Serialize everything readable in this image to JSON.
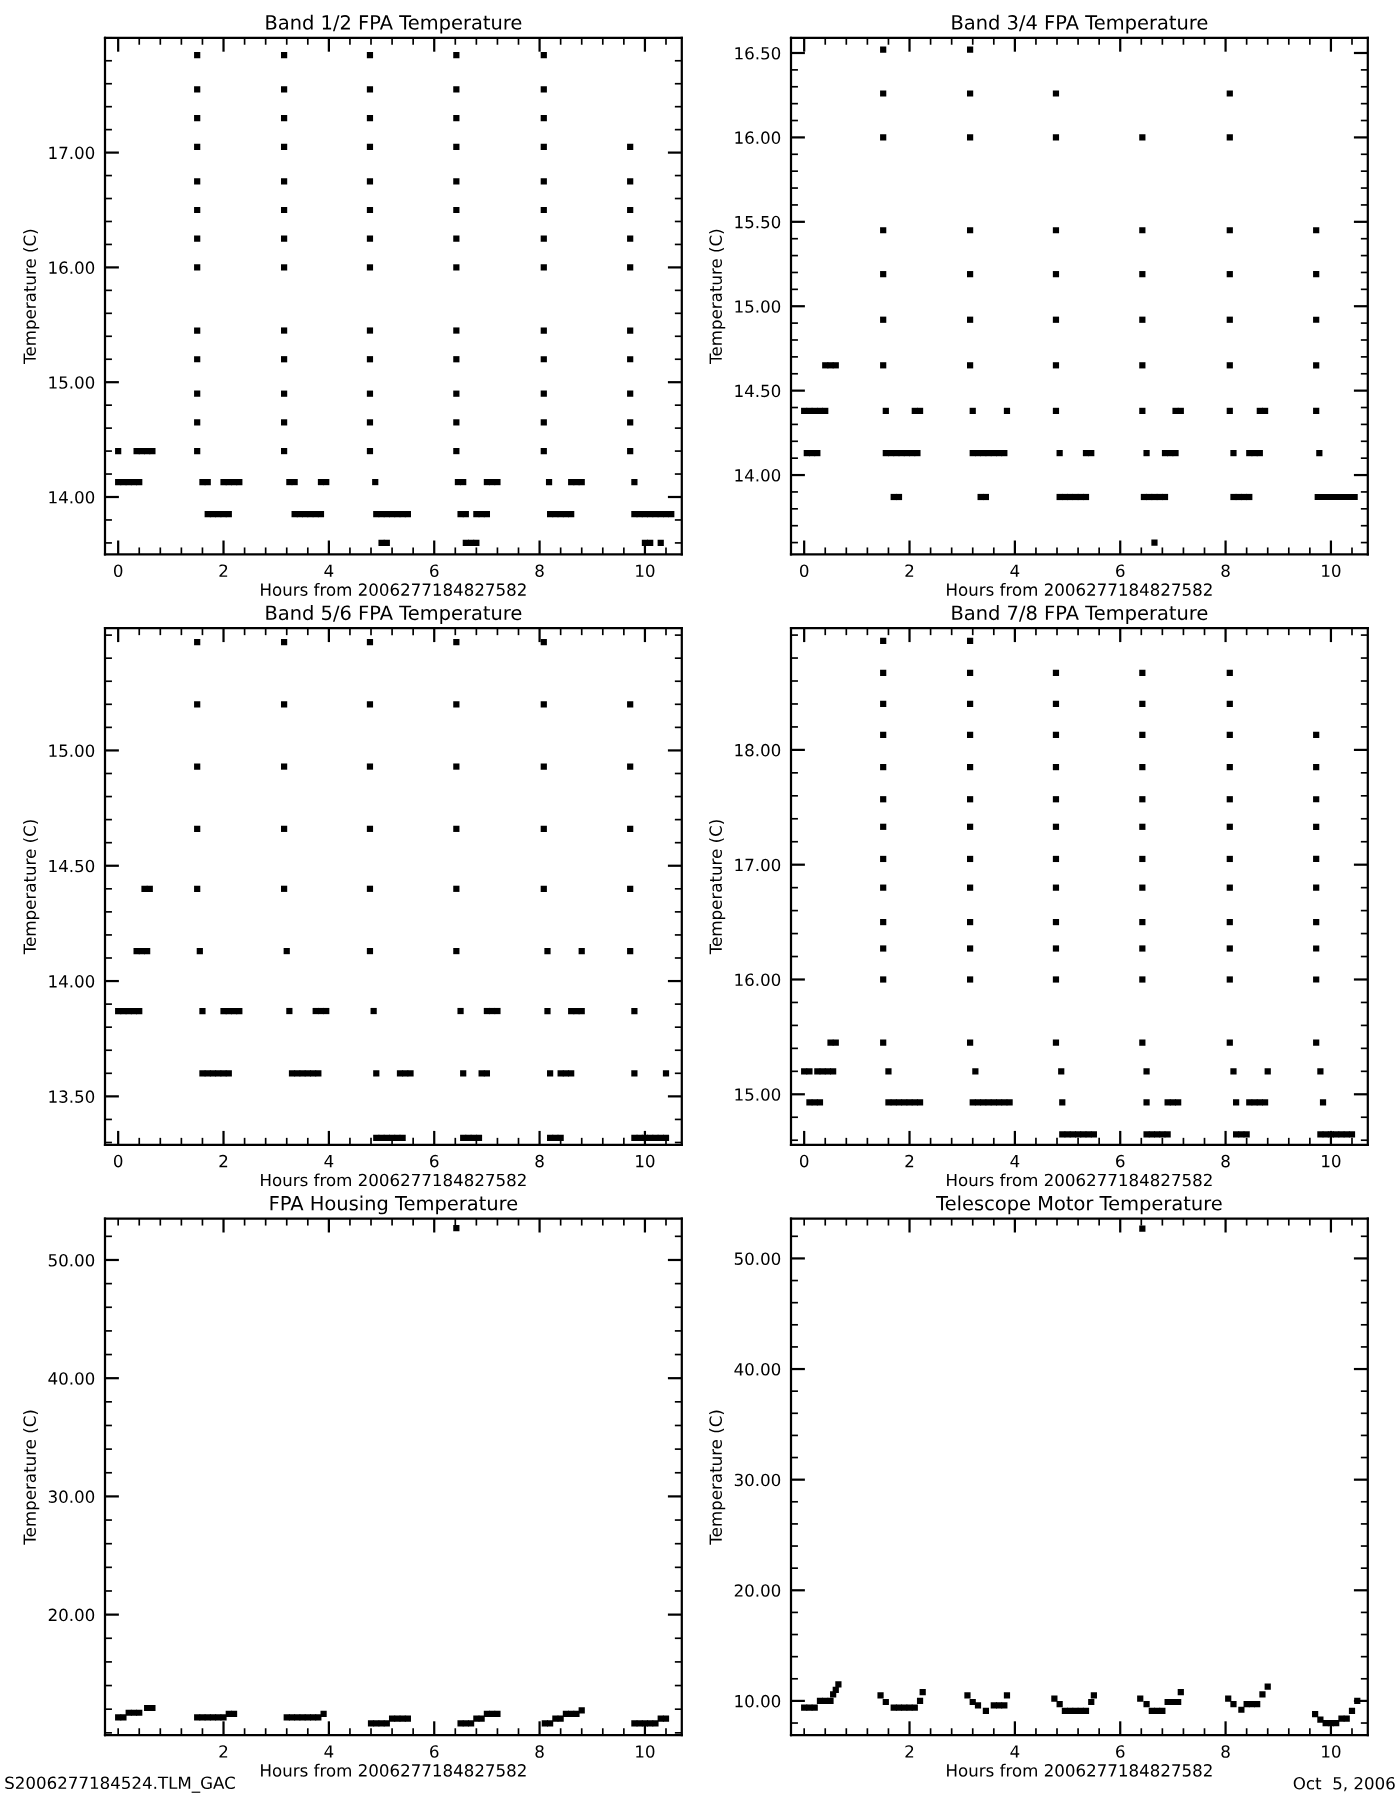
{
  "chart_data": [
    {
      "type": "scatter",
      "title": "Band 1/2 FPA Temperature",
      "xlabel": "Hours from 2006277184827582",
      "ylabel": "Temperature (C)",
      "color": "#000000",
      "marker": "square",
      "grid": false,
      "x": [
        0,
        0,
        0.1,
        0.2,
        0.3,
        0.4,
        0.35,
        0.45,
        0.55,
        0.65,
        1.5,
        1.5,
        1.5,
        1.5,
        1.5,
        1.5,
        1.5,
        1.5,
        1.5,
        1.5,
        1.5,
        1.5,
        1.5,
        1.6,
        1.7,
        1.7,
        1.8,
        1.9,
        2.0,
        2.1,
        2.0,
        2.1,
        2.2,
        2.3,
        3.15,
        3.15,
        3.15,
        3.15,
        3.15,
        3.15,
        3.15,
        3.15,
        3.15,
        3.15,
        3.15,
        3.15,
        3.15,
        3.25,
        3.35,
        3.35,
        3.45,
        3.55,
        3.65,
        3.75,
        3.85,
        3.85,
        3.95,
        4.78,
        4.78,
        4.78,
        4.78,
        4.78,
        4.78,
        4.78,
        4.78,
        4.78,
        4.78,
        4.78,
        4.78,
        4.78,
        4.88,
        4.9,
        5.0,
        5.1,
        5.2,
        5.3,
        5.4,
        5.5,
        5.0,
        5.1,
        6.42,
        6.42,
        6.42,
        6.42,
        6.42,
        6.42,
        6.42,
        6.42,
        6.42,
        6.42,
        6.42,
        6.42,
        6.42,
        6.45,
        6.55,
        6.5,
        6.6,
        6.6,
        6.7,
        6.8,
        6.8,
        6.9,
        7.0,
        7.0,
        7.1,
        7.2,
        8.08,
        8.08,
        8.08,
        8.08,
        8.08,
        8.08,
        8.08,
        8.08,
        8.08,
        8.08,
        8.08,
        8.08,
        8.08,
        8.18,
        8.2,
        8.3,
        8.4,
        8.5,
        8.6,
        8.6,
        8.7,
        8.8,
        9.72,
        9.72,
        9.72,
        9.72,
        9.72,
        9.72,
        9.72,
        9.72,
        9.72,
        9.72,
        9.8,
        9.8,
        9.9,
        10.0,
        10.1,
        10.2,
        10.3,
        10.4,
        10.5,
        10.0,
        10.1,
        10.3
      ],
      "values": [
        14.4,
        14.13,
        14.13,
        14.13,
        14.13,
        14.13,
        14.4,
        14.4,
        14.4,
        14.4,
        17.85,
        17.55,
        17.3,
        17.05,
        16.75,
        16.5,
        16.25,
        16.0,
        15.45,
        15.2,
        14.9,
        14.65,
        14.4,
        14.13,
        14.13,
        13.85,
        13.85,
        13.85,
        13.85,
        13.85,
        14.13,
        14.13,
        14.13,
        14.13,
        17.85,
        17.55,
        17.3,
        17.05,
        16.75,
        16.5,
        16.25,
        16.0,
        15.45,
        15.2,
        14.9,
        14.65,
        14.4,
        14.13,
        14.13,
        13.85,
        13.85,
        13.85,
        13.85,
        13.85,
        13.85,
        14.13,
        14.13,
        17.85,
        17.55,
        17.3,
        17.05,
        16.75,
        16.5,
        16.25,
        16.0,
        15.45,
        15.2,
        14.9,
        14.65,
        14.4,
        14.13,
        13.85,
        13.85,
        13.85,
        13.85,
        13.85,
        13.85,
        13.85,
        13.6,
        13.6,
        17.85,
        17.55,
        17.3,
        17.05,
        16.75,
        16.5,
        16.25,
        16.0,
        15.45,
        15.2,
        14.9,
        14.65,
        14.4,
        14.13,
        14.13,
        13.85,
        13.85,
        13.6,
        13.6,
        13.6,
        13.85,
        13.85,
        13.85,
        14.13,
        14.13,
        14.13,
        17.85,
        17.55,
        17.3,
        17.05,
        16.75,
        16.5,
        16.25,
        16.0,
        15.45,
        15.2,
        14.9,
        14.65,
        14.4,
        14.13,
        13.85,
        13.85,
        13.85,
        13.85,
        13.85,
        14.13,
        14.13,
        14.13,
        17.05,
        16.75,
        16.5,
        16.25,
        16.0,
        15.45,
        15.2,
        14.9,
        14.65,
        14.4,
        14.13,
        13.85,
        13.85,
        13.85,
        13.85,
        13.85,
        13.85,
        13.85,
        13.85,
        13.6,
        13.6,
        13.6
      ],
      "xlim": [
        -0.25,
        10.7
      ],
      "ylim": [
        13.5,
        18.0
      ],
      "xticks": [
        0,
        2,
        4,
        6,
        8,
        10
      ],
      "yticks": [
        {
          "value": 14,
          "label": "14.00"
        },
        {
          "value": 15,
          "label": "15.00"
        },
        {
          "value": 16,
          "label": "16.00"
        },
        {
          "value": 17,
          "label": "17.00"
        }
      ]
    },
    {
      "type": "scatter",
      "title": "Band 3/4 FPA Temperature",
      "xlabel": "Hours from 2006277184827582",
      "ylabel": "Temperature (C)",
      "color": "#000000",
      "marker": "square",
      "grid": false,
      "x": [
        0,
        0.1,
        0.2,
        0.3,
        0.4,
        0.05,
        0.15,
        0.25,
        0.4,
        0.5,
        0.6,
        1.5,
        1.5,
        1.5,
        1.5,
        1.5,
        1.5,
        1.5,
        1.55,
        1.55,
        1.65,
        1.75,
        1.85,
        1.95,
        2.05,
        2.15,
        1.7,
        1.8,
        2.1,
        2.2,
        3.15,
        3.15,
        3.15,
        3.15,
        3.15,
        3.15,
        3.15,
        3.2,
        3.2,
        3.3,
        3.4,
        3.5,
        3.6,
        3.7,
        3.8,
        3.35,
        3.45,
        3.85,
        4.78,
        4.78,
        4.78,
        4.78,
        4.78,
        4.78,
        4.78,
        4.85,
        4.85,
        4.95,
        5.05,
        5.15,
        5.25,
        5.35,
        5.35,
        5.45,
        6.42,
        6.42,
        6.42,
        6.42,
        6.42,
        6.42,
        6.5,
        6.45,
        6.55,
        6.65,
        6.75,
        6.85,
        6.85,
        6.95,
        7.05,
        7.05,
        7.15,
        6.65,
        8.08,
        8.08,
        8.08,
        8.08,
        8.08,
        8.08,
        8.08,
        8.15,
        8.15,
        8.25,
        8.35,
        8.45,
        8.45,
        8.55,
        8.65,
        8.65,
        8.75,
        9.72,
        9.72,
        9.72,
        9.72,
        9.72,
        9.78,
        9.75,
        9.85,
        9.95,
        10.05,
        10.15,
        10.25,
        10.35,
        10.45
      ],
      "values": [
        14.38,
        14.38,
        14.38,
        14.38,
        14.38,
        14.13,
        14.13,
        14.13,
        14.65,
        14.65,
        14.65,
        16.52,
        16.26,
        16.0,
        15.45,
        15.19,
        14.92,
        14.65,
        14.38,
        14.13,
        14.13,
        14.13,
        14.13,
        14.13,
        14.13,
        14.13,
        13.87,
        13.87,
        14.38,
        14.38,
        16.52,
        16.26,
        16.0,
        15.45,
        15.19,
        14.92,
        14.65,
        14.38,
        14.13,
        14.13,
        14.13,
        14.13,
        14.13,
        14.13,
        14.13,
        13.87,
        13.87,
        14.38,
        16.26,
        16.0,
        15.45,
        15.19,
        14.92,
        14.65,
        14.38,
        14.13,
        13.87,
        13.87,
        13.87,
        13.87,
        13.87,
        13.87,
        14.13,
        14.13,
        16.0,
        15.45,
        15.19,
        14.92,
        14.65,
        14.38,
        14.13,
        13.87,
        13.87,
        13.87,
        13.87,
        13.87,
        14.13,
        14.13,
        14.13,
        14.38,
        14.38,
        13.6,
        16.26,
        16.0,
        15.45,
        15.19,
        14.92,
        14.65,
        14.38,
        14.13,
        13.87,
        13.87,
        13.87,
        13.87,
        14.13,
        14.13,
        14.13,
        14.38,
        14.38,
        15.45,
        15.19,
        14.92,
        14.65,
        14.38,
        14.13,
        13.87,
        13.87,
        13.87,
        13.87,
        13.87,
        13.87,
        13.87,
        13.87
      ],
      "xlim": [
        -0.25,
        10.7
      ],
      "ylim": [
        13.53,
        16.59
      ],
      "xticks": [
        0,
        2,
        4,
        6,
        8,
        10
      ],
      "yticks": [
        {
          "value": 14,
          "label": "14.00"
        },
        {
          "value": 14.5,
          "label": "14.50"
        },
        {
          "value": 15,
          "label": "15.00"
        },
        {
          "value": 15.5,
          "label": "15.50"
        },
        {
          "value": 16,
          "label": "16.00"
        },
        {
          "value": 16.5,
          "label": "16.50"
        }
      ]
    },
    {
      "type": "scatter",
      "title": "Band 5/6 FPA Temperature",
      "xlabel": "Hours from 2006277184827582",
      "ylabel": "Temperature (C)",
      "color": "#000000",
      "marker": "square",
      "grid": false,
      "x": [
        0,
        0.1,
        0.2,
        0.3,
        0.4,
        0.35,
        0.45,
        0.55,
        0.5,
        0.6,
        1.5,
        1.5,
        1.5,
        1.5,
        1.5,
        1.55,
        1.6,
        1.6,
        1.7,
        1.8,
        1.9,
        2.0,
        2.1,
        2.0,
        2.1,
        2.2,
        2.3,
        3.15,
        3.15,
        3.15,
        3.15,
        3.15,
        3.2,
        3.25,
        3.3,
        3.4,
        3.5,
        3.6,
        3.7,
        3.8,
        3.75,
        3.85,
        3.95,
        4.78,
        4.78,
        4.78,
        4.78,
        4.78,
        4.78,
        4.85,
        4.9,
        4.9,
        5.0,
        5.1,
        5.2,
        5.3,
        5.4,
        5.35,
        5.45,
        5.55,
        6.42,
        6.42,
        6.42,
        6.42,
        6.42,
        6.42,
        6.5,
        6.55,
        6.55,
        6.65,
        6.75,
        6.85,
        6.9,
        7.0,
        7.0,
        7.1,
        7.2,
        8.08,
        8.08,
        8.08,
        8.08,
        8.08,
        8.15,
        8.15,
        8.2,
        8.2,
        8.3,
        8.4,
        8.4,
        8.5,
        8.6,
        8.6,
        8.7,
        8.8,
        8.8,
        9.72,
        9.72,
        9.72,
        9.72,
        9.72,
        9.8,
        9.8,
        9.8,
        9.9,
        10.0,
        10.1,
        10.2,
        10.3,
        10.4,
        10.4
      ],
      "values": [
        13.87,
        13.87,
        13.87,
        13.87,
        13.87,
        14.13,
        14.13,
        14.13,
        14.4,
        14.4,
        15.47,
        15.2,
        14.93,
        14.66,
        14.4,
        14.13,
        13.87,
        13.6,
        13.6,
        13.6,
        13.6,
        13.6,
        13.6,
        13.87,
        13.87,
        13.87,
        13.87,
        15.47,
        15.2,
        14.93,
        14.66,
        14.4,
        14.13,
        13.87,
        13.6,
        13.6,
        13.6,
        13.6,
        13.6,
        13.6,
        13.87,
        13.87,
        13.87,
        15.47,
        15.2,
        14.93,
        14.66,
        14.4,
        14.13,
        13.87,
        13.6,
        13.32,
        13.32,
        13.32,
        13.32,
        13.32,
        13.32,
        13.6,
        13.6,
        13.6,
        15.47,
        15.2,
        14.93,
        14.66,
        14.4,
        14.13,
        13.87,
        13.6,
        13.32,
        13.32,
        13.32,
        13.32,
        13.6,
        13.6,
        13.87,
        13.87,
        13.87,
        15.47,
        15.2,
        14.93,
        14.66,
        14.4,
        14.13,
        13.87,
        13.6,
        13.32,
        13.32,
        13.32,
        13.6,
        13.6,
        13.6,
        13.87,
        13.87,
        13.87,
        14.13,
        15.2,
        14.93,
        14.66,
        14.4,
        14.13,
        13.87,
        13.6,
        13.32,
        13.32,
        13.32,
        13.32,
        13.32,
        13.32,
        13.32,
        13.6
      ],
      "xlim": [
        -0.25,
        10.7
      ],
      "ylim": [
        13.29,
        15.53
      ],
      "xticks": [
        0,
        2,
        4,
        6,
        8,
        10
      ],
      "yticks": [
        {
          "value": 13.5,
          "label": "13.50"
        },
        {
          "value": 14,
          "label": "14.00"
        },
        {
          "value": 14.5,
          "label": "14.50"
        },
        {
          "value": 15,
          "label": "15.00"
        }
      ]
    },
    {
      "type": "scatter",
      "title": "Band 7/8 FPA Temperature",
      "xlabel": "Hours from 2006277184827582",
      "ylabel": "Temperature (C)",
      "color": "#000000",
      "marker": "square",
      "grid": false,
      "x": [
        0,
        0.1,
        0.1,
        0.2,
        0.3,
        0.25,
        0.35,
        0.45,
        0.55,
        0.5,
        0.6,
        1.5,
        1.5,
        1.5,
        1.5,
        1.5,
        1.5,
        1.5,
        1.5,
        1.5,
        1.5,
        1.5,
        1.5,
        1.5,
        1.6,
        1.6,
        1.7,
        1.8,
        1.9,
        2.0,
        2.1,
        2.2,
        3.15,
        3.15,
        3.15,
        3.15,
        3.15,
        3.15,
        3.15,
        3.15,
        3.15,
        3.15,
        3.15,
        3.15,
        3.15,
        3.25,
        3.2,
        3.3,
        3.4,
        3.5,
        3.6,
        3.7,
        3.8,
        3.9,
        4.78,
        4.78,
        4.78,
        4.78,
        4.78,
        4.78,
        4.78,
        4.78,
        4.78,
        4.78,
        4.78,
        4.78,
        4.88,
        4.9,
        4.9,
        5.0,
        5.1,
        5.2,
        5.3,
        5.4,
        5.5,
        6.42,
        6.42,
        6.42,
        6.42,
        6.42,
        6.42,
        6.42,
        6.42,
        6.42,
        6.42,
        6.42,
        6.42,
        6.5,
        6.5,
        6.5,
        6.6,
        6.7,
        6.8,
        6.9,
        6.9,
        7.0,
        7.1,
        8.08,
        8.08,
        8.08,
        8.08,
        8.08,
        8.08,
        8.08,
        8.08,
        8.08,
        8.08,
        8.08,
        8.08,
        8.15,
        8.2,
        8.2,
        8.3,
        8.4,
        8.45,
        8.55,
        8.65,
        8.75,
        8.8,
        9.72,
        9.72,
        9.72,
        9.72,
        9.72,
        9.72,
        9.72,
        9.72,
        9.72,
        9.72,
        9.8,
        9.85,
        9.8,
        9.9,
        10.0,
        10.1,
        10.2,
        10.3,
        10.4
      ],
      "values": [
        15.2,
        15.2,
        14.93,
        14.93,
        14.93,
        15.2,
        15.2,
        15.2,
        15.2,
        15.45,
        15.45,
        18.95,
        18.67,
        18.4,
        18.13,
        17.85,
        17.57,
        17.33,
        17.05,
        16.8,
        16.5,
        16.27,
        16.0,
        15.45,
        15.2,
        14.93,
        14.93,
        14.93,
        14.93,
        14.93,
        14.93,
        14.93,
        18.95,
        18.67,
        18.4,
        18.13,
        17.85,
        17.57,
        17.33,
        17.05,
        16.8,
        16.5,
        16.27,
        16.0,
        15.45,
        15.2,
        14.93,
        14.93,
        14.93,
        14.93,
        14.93,
        14.93,
        14.93,
        14.93,
        18.67,
        18.4,
        18.13,
        17.85,
        17.57,
        17.33,
        17.05,
        16.8,
        16.5,
        16.27,
        16.0,
        15.45,
        15.2,
        14.93,
        14.65,
        14.65,
        14.65,
        14.65,
        14.65,
        14.65,
        14.65,
        18.67,
        18.4,
        18.13,
        17.85,
        17.57,
        17.33,
        17.05,
        16.8,
        16.5,
        16.27,
        16.0,
        15.45,
        15.2,
        14.93,
        14.65,
        14.65,
        14.65,
        14.65,
        14.65,
        14.93,
        14.93,
        14.93,
        18.67,
        18.4,
        18.13,
        17.85,
        17.57,
        17.33,
        17.05,
        16.8,
        16.5,
        16.27,
        16.0,
        15.45,
        15.2,
        14.93,
        14.65,
        14.65,
        14.65,
        14.93,
        14.93,
        14.93,
        14.93,
        15.2,
        18.13,
        17.85,
        17.57,
        17.33,
        17.05,
        16.8,
        16.5,
        16.27,
        16.0,
        15.45,
        15.2,
        14.93,
        14.65,
        14.65,
        14.65,
        14.65,
        14.65,
        14.65,
        14.65
      ],
      "xlim": [
        -0.25,
        10.7
      ],
      "ylim": [
        14.56,
        19.06
      ],
      "xticks": [
        0,
        2,
        4,
        6,
        8,
        10
      ],
      "yticks": [
        {
          "value": 15,
          "label": "15.00"
        },
        {
          "value": 16,
          "label": "16.00"
        },
        {
          "value": 17,
          "label": "17.00"
        },
        {
          "value": 18,
          "label": "18.00"
        }
      ]
    },
    {
      "type": "scatter",
      "title": "FPA Housing Temperature",
      "xlabel": "Hours from 2006277184827582",
      "ylabel": "Temperature (C)",
      "color": "#000000",
      "marker": "square",
      "grid": false,
      "x": [
        0,
        0.1,
        0.2,
        0.3,
        0.4,
        0.55,
        0.65,
        1.5,
        1.6,
        1.7,
        1.8,
        1.9,
        2.0,
        2.1,
        2.2,
        3.2,
        3.3,
        3.4,
        3.5,
        3.6,
        3.7,
        3.8,
        3.9,
        4.8,
        4.9,
        5.0,
        5.1,
        5.2,
        5.3,
        5.4,
        5.5,
        6.42,
        6.5,
        6.6,
        6.7,
        6.8,
        6.9,
        7.0,
        7.1,
        7.2,
        8.1,
        8.2,
        8.3,
        8.4,
        8.5,
        8.6,
        8.7,
        8.8,
        9.8,
        9.9,
        10.0,
        10.1,
        10.2,
        10.3,
        10.4
      ],
      "values": [
        11.3,
        11.3,
        11.7,
        11.7,
        11.7,
        12.1,
        12.1,
        11.3,
        11.3,
        11.3,
        11.3,
        11.3,
        11.3,
        11.6,
        11.6,
        11.3,
        11.3,
        11.3,
        11.3,
        11.3,
        11.3,
        11.3,
        11.6,
        10.8,
        10.8,
        10.8,
        10.8,
        11.2,
        11.2,
        11.2,
        11.2,
        52.7,
        10.8,
        10.8,
        10.8,
        11.2,
        11.2,
        11.6,
        11.6,
        11.6,
        10.8,
        10.8,
        11.2,
        11.2,
        11.6,
        11.6,
        11.6,
        11.9,
        10.8,
        10.8,
        10.8,
        10.8,
        10.8,
        11.2,
        11.2
      ],
      "xlim": [
        -0.25,
        10.7
      ],
      "ylim": [
        9.8,
        53.5
      ],
      "xticks": [
        2,
        4,
        6,
        8,
        10
      ],
      "yticks": [
        {
          "value": 20,
          "label": "20.00"
        },
        {
          "value": 30,
          "label": "30.00"
        },
        {
          "value": 40,
          "label": "40.00"
        },
        {
          "value": 50,
          "label": "50.00"
        }
      ],
      "annotations": [
        "S2006277184524.TLM_GAC"
      ]
    },
    {
      "type": "scatter",
      "title": "Telescope Motor Temperature",
      "xlabel": "Hours from 2006277184827582",
      "ylabel": "Temperature (C)",
      "color": "#000000",
      "marker": "square",
      "grid": false,
      "x": [
        0,
        0.1,
        0.2,
        0.3,
        0.4,
        0.5,
        0.55,
        0.6,
        0.65,
        1.45,
        1.55,
        1.7,
        1.8,
        1.9,
        2.0,
        2.1,
        2.2,
        2.25,
        3.1,
        3.2,
        3.3,
        3.45,
        3.6,
        3.7,
        3.8,
        3.85,
        4.75,
        4.85,
        4.95,
        5.05,
        5.15,
        5.25,
        5.35,
        5.45,
        5.5,
        6.38,
        6.42,
        6.5,
        6.6,
        6.7,
        6.8,
        6.9,
        7.0,
        7.1,
        7.15,
        8.05,
        8.15,
        8.3,
        8.4,
        8.5,
        8.6,
        8.7,
        8.8,
        9.7,
        9.8,
        9.9,
        10.0,
        10.1,
        10.2,
        10.3,
        10.4,
        10.5
      ],
      "values": [
        9.4,
        9.4,
        9.4,
        10.0,
        10.0,
        10.0,
        10.6,
        11.0,
        11.5,
        10.5,
        9.9,
        9.4,
        9.4,
        9.4,
        9.4,
        9.4,
        10.0,
        10.8,
        10.5,
        9.9,
        9.6,
        9.1,
        9.6,
        9.6,
        9.6,
        10.5,
        10.2,
        9.7,
        9.1,
        9.1,
        9.1,
        9.1,
        9.1,
        9.9,
        10.5,
        10.2,
        52.7,
        9.7,
        9.1,
        9.1,
        9.1,
        9.9,
        9.9,
        9.9,
        10.8,
        10.2,
        9.7,
        9.2,
        9.7,
        9.7,
        9.7,
        10.6,
        11.3,
        8.8,
        8.3,
        8.0,
        8.0,
        8.0,
        8.4,
        8.4,
        9.1,
        10.0
      ],
      "xlim": [
        -0.25,
        10.7
      ],
      "ylim": [
        6.9,
        53.6
      ],
      "xticks": [
        2,
        4,
        6,
        8,
        10
      ],
      "yticks": [
        {
          "value": 10,
          "label": "10.00"
        },
        {
          "value": 20,
          "label": "20.00"
        },
        {
          "value": 30,
          "label": "30.00"
        },
        {
          "value": 40,
          "label": "40.00"
        },
        {
          "value": 50,
          "label": "50.00"
        }
      ],
      "annotations": [
        "Oct  5, 2006"
      ]
    }
  ]
}
